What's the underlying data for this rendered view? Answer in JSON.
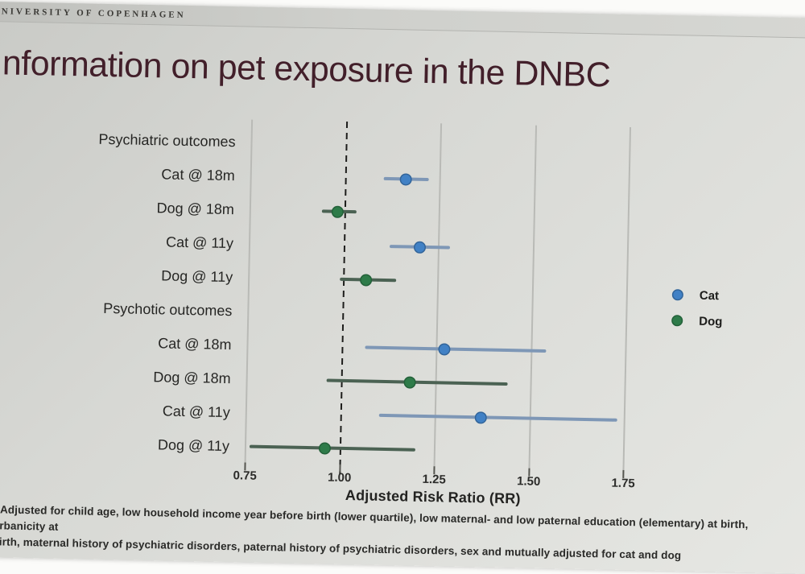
{
  "header": {
    "university": "NIVERSITY OF COPENHAGEN"
  },
  "title": "Information on pet exposure in the DNBC",
  "chart_data": {
    "type": "scatter",
    "subtype": "forest-plot (point estimates with 95% confidence intervals)",
    "title": "Information on pet exposure in the DNBC",
    "xlabel": "Adjusted Risk Ratio (RR)",
    "ylabel": "",
    "xlim": [
      0.66,
      1.85
    ],
    "x_ticks": [
      0.75,
      1.0,
      1.25,
      1.5,
      1.75
    ],
    "x_tick_labels": [
      "0.75",
      "1.00",
      "1.25",
      "1.50",
      "1.75"
    ],
    "reference_line": 1.0,
    "grid": true,
    "legend_position": "right",
    "legend": [
      {
        "label": "Cat",
        "point_color": "#4181c5",
        "ci_color": "#7e97b6"
      },
      {
        "label": "Dog",
        "point_color": "#2e7b49",
        "ci_color": "#4b6253"
      }
    ],
    "rows": [
      {
        "kind": "header",
        "label": "Psychiatric outcomes"
      },
      {
        "kind": "point",
        "label": "Cat @ 18m",
        "series": "Cat",
        "rr": 1.16,
        "ci_low": 1.1,
        "ci_high": 1.22
      },
      {
        "kind": "point",
        "label": "Dog @ 18m",
        "series": "Dog",
        "rr": 0.98,
        "ci_low": 0.94,
        "ci_high": 1.03
      },
      {
        "kind": "point",
        "label": "Cat @ 11y",
        "series": "Cat",
        "rr": 1.2,
        "ci_low": 1.12,
        "ci_high": 1.28
      },
      {
        "kind": "point",
        "label": "Dog @ 11y",
        "series": "Dog",
        "rr": 1.06,
        "ci_low": 0.99,
        "ci_high": 1.14
      },
      {
        "kind": "header",
        "label": "Psychotic outcomes"
      },
      {
        "kind": "point",
        "label": "Cat @ 18m",
        "series": "Cat",
        "rr": 1.27,
        "ci_low": 1.06,
        "ci_high": 1.54
      },
      {
        "kind": "point",
        "label": "Dog @ 18m",
        "series": "Dog",
        "rr": 1.18,
        "ci_low": 0.96,
        "ci_high": 1.44
      },
      {
        "kind": "point",
        "label": "Cat @ 11y",
        "series": "Cat",
        "rr": 1.37,
        "ci_low": 1.1,
        "ci_high": 1.73
      },
      {
        "kind": "point",
        "label": "Dog @ 11y",
        "series": "Dog",
        "rr": 0.96,
        "ci_low": 0.76,
        "ci_high": 1.2
      }
    ]
  },
  "footnote": {
    "line1": "* Adjusted for child age, low household income year before birth (lower quartile), low maternal- and low paternal education (elementary) at birth, urbanicity at",
    "line2": "birth, maternal history of psychiatric disorders, paternal history of psychiatric disorders, sex and mutually adjusted for cat and dog"
  },
  "colors": {
    "title_text": "#421f2a",
    "slide_background": "#d8d9d5",
    "cat_point": "#4181c5",
    "dog_point": "#2e7b49",
    "reference_line": "#1d1d1b"
  }
}
